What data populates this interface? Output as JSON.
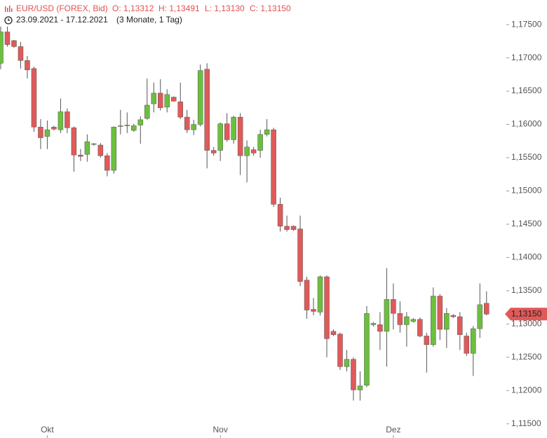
{
  "chart_data": {
    "type": "candlestick",
    "title": "EUR/USD (FOREX, Bid)",
    "ohlc": [
      "O: 1,13312",
      "H: 1,13491",
      "L: 1,13130",
      "C: 1,13150"
    ],
    "subtitle": "23.09.2021 - 17.12.2021",
    "period": "(3 Monate, 1 Tag)",
    "categories": [
      null,
      null,
      null,
      null,
      null,
      null,
      null,
      "Okt",
      null,
      null,
      null,
      null,
      null,
      null,
      null,
      null,
      null,
      null,
      null,
      null,
      null,
      null,
      null,
      null,
      null,
      null,
      null,
      null,
      null,
      null,
      null,
      null,
      null,
      "Nov",
      null,
      null,
      null,
      null,
      null,
      null,
      null,
      null,
      null,
      null,
      null,
      null,
      null,
      null,
      null,
      null,
      null,
      null,
      null,
      null,
      null,
      null,
      null,
      null,
      null,
      "Dez",
      null,
      null,
      null,
      null,
      null,
      null,
      null,
      null,
      null,
      null,
      null,
      null,
      null,
      null
    ],
    "open": [
      1.1692,
      1.1739,
      1.1726,
      1.1717,
      1.1696,
      1.1684,
      1.1596,
      1.1582,
      1.1596,
      1.1592,
      1.1619,
      1.1595,
      1.1554,
      1.1555,
      1.157,
      1.1569,
      1.1553,
      1.1531,
      1.1597,
      1.1598,
      1.1591,
      1.1599,
      1.1609,
      1.1631,
      1.1647,
      1.1626,
      1.1641,
      1.1634,
      1.1611,
      1.1592,
      1.16,
      1.1683,
      1.1561,
      1.1561,
      1.1601,
      1.1577,
      1.1611,
      1.1553,
      1.1562,
      1.1561,
      1.1585,
      1.1592,
      1.148,
      1.1447,
      1.1447,
      1.1443,
      1.1366,
      1.1322,
      1.1318,
      1.1371,
      1.1289,
      1.1285,
      1.1236,
      1.1247,
      1.1201,
      1.1208,
      1.1299,
      1.1299,
      1.1289,
      1.1337,
      1.1316,
      1.1299,
      1.1304,
      1.1307,
      1.1282,
      1.1269,
      1.1342,
      1.1292,
      1.1313,
      1.1311,
      1.1282,
      1.1256,
      1.1293,
      1.13312
    ],
    "high": [
      1.1747,
      1.1747,
      1.1727,
      1.1724,
      1.1703,
      1.1687,
      1.1608,
      1.1606,
      1.1598,
      1.1639,
      1.1624,
      1.1597,
      1.1563,
      1.1585,
      1.1572,
      1.1572,
      1.1557,
      1.1597,
      1.1622,
      1.1618,
      1.1601,
      1.1612,
      1.1669,
      1.1663,
      1.1668,
      1.1653,
      1.1642,
      1.1663,
      1.1622,
      1.1607,
      1.169,
      1.1692,
      1.1566,
      1.1603,
      1.1617,
      1.1613,
      1.1617,
      1.1576,
      1.1566,
      1.1592,
      1.1608,
      1.1595,
      1.149,
      1.1463,
      1.1448,
      1.1463,
      1.1371,
      1.1339,
      1.1373,
      1.1373,
      1.1292,
      1.1287,
      1.1261,
      1.125,
      1.1229,
      1.1327,
      1.1303,
      1.1318,
      1.1384,
      1.1361,
      1.1334,
      1.1318,
      1.1309,
      1.131,
      1.1287,
      1.1355,
      1.1345,
      1.1324,
      1.1315,
      1.1318,
      1.1287,
      1.1297,
      1.1361,
      1.13491
    ],
    "low": [
      1.1683,
      1.1717,
      1.1715,
      1.1684,
      1.1669,
      1.1589,
      1.1563,
      1.1563,
      1.1591,
      1.1587,
      1.1587,
      1.1529,
      1.1545,
      1.1544,
      1.1568,
      1.155,
      1.1522,
      1.1526,
      1.1585,
      1.1587,
      1.1589,
      1.1571,
      1.1607,
      1.1618,
      1.1621,
      1.1618,
      1.1634,
      1.1608,
      1.1587,
      1.1584,
      1.1597,
      1.1534,
      1.1553,
      1.1545,
      1.1574,
      1.1571,
      1.1524,
      1.1513,
      1.1553,
      1.155,
      1.1582,
      1.1476,
      1.1439,
      1.1439,
      1.144,
      1.1357,
      1.1308,
      1.1313,
      1.1313,
      1.125,
      1.1282,
      1.1231,
      1.1229,
      1.1185,
      1.1185,
      1.1205,
      1.1296,
      1.1261,
      1.1236,
      1.1292,
      1.1287,
      1.1266,
      1.1302,
      1.128,
      1.1227,
      1.1266,
      1.1276,
      1.1264,
      1.1309,
      1.1261,
      1.1252,
      1.1222,
      1.1279,
      1.1313
    ],
    "close": [
      1.1739,
      1.172,
      1.1717,
      1.1696,
      1.1682,
      1.1596,
      1.158,
      1.1592,
      1.1593,
      1.1619,
      1.1595,
      1.1554,
      1.1552,
      1.1574,
      1.1571,
      1.1553,
      1.1531,
      1.1596,
      1.1598,
      1.1599,
      1.1598,
      1.1607,
      1.1629,
      1.1647,
      1.1625,
      1.1645,
      1.1635,
      1.1611,
      1.1592,
      1.16,
      1.1681,
      1.1561,
      1.1557,
      1.1601,
      1.1577,
      1.1611,
      1.1553,
      1.1566,
      1.1557,
      1.1585,
      1.1592,
      1.148,
      1.1447,
      1.1442,
      1.1442,
      1.1364,
      1.1321,
      1.1319,
      1.1371,
      1.1278,
      1.1284,
      1.1236,
      1.1247,
      1.1201,
      1.1207,
      1.1316,
      1.1301,
      1.1289,
      1.1337,
      1.1316,
      1.1299,
      1.1311,
      1.1307,
      1.1282,
      1.1269,
      1.1342,
      1.1292,
      1.1316,
      1.1311,
      1.1284,
      1.1256,
      1.1293,
      1.1329,
      1.1315
    ],
    "up_color": "#6cbf3e",
    "down_color": "#e05a5a",
    "last_price": {
      "value": 1.1315,
      "label": "1,13150"
    },
    "ylim": [
      1.1134,
      1.1787
    ],
    "yticks": [
      {
        "value": 1.115,
        "label": "1,11500"
      },
      {
        "value": 1.12,
        "label": "1,12000"
      },
      {
        "value": 1.125,
        "label": "1,12500"
      },
      {
        "value": 1.13,
        "label": "1,13000"
      },
      {
        "value": 1.135,
        "label": "1,13500"
      },
      {
        "value": 1.14,
        "label": "1,14000"
      },
      {
        "value": 1.145,
        "label": "1,14500"
      },
      {
        "value": 1.15,
        "label": "1,15000"
      },
      {
        "value": 1.155,
        "label": "1,15500"
      },
      {
        "value": 1.16,
        "label": "1,16000"
      },
      {
        "value": 1.165,
        "label": "1,16500"
      },
      {
        "value": 1.17,
        "label": "1,17000"
      },
      {
        "value": 1.175,
        "label": "1,17500"
      }
    ]
  }
}
